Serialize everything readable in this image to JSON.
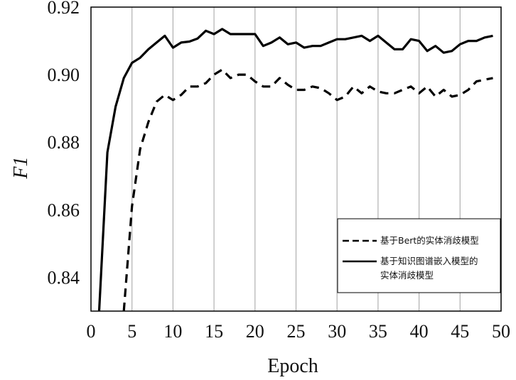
{
  "chart_data": {
    "type": "line",
    "xlabel": "Epoch",
    "ylabel": "F1",
    "xlim": [
      0,
      50
    ],
    "ylim": [
      0.83,
      0.92
    ],
    "xticks": [
      "0",
      "5",
      "10",
      "15",
      "20",
      "25",
      "30",
      "35",
      "40",
      "45",
      "50"
    ],
    "yticks": [
      "0.84",
      "0.86",
      "0.88",
      "0.90",
      "0.92"
    ],
    "grid": "vertical",
    "legend_position": "bottom-right",
    "series": [
      {
        "name": "基于Bert的实体消歧模型",
        "style": "dashed",
        "color": "#000000",
        "x": [
          4,
          5,
          6,
          7,
          8,
          9,
          10,
          11,
          12,
          13,
          14,
          15,
          16,
          17,
          18,
          19,
          20,
          21,
          22,
          23,
          24,
          25,
          26,
          27,
          28,
          29,
          30,
          31,
          32,
          33,
          34,
          35,
          36,
          37,
          38,
          39,
          40,
          41,
          42,
          43,
          44,
          45,
          46,
          47,
          48,
          49
        ],
        "y": [
          0.83,
          0.861,
          0.878,
          0.886,
          0.892,
          0.894,
          0.8925,
          0.894,
          0.8965,
          0.8965,
          0.8975,
          0.9,
          0.9015,
          0.899,
          0.9,
          0.9,
          0.898,
          0.8965,
          0.8965,
          0.899,
          0.897,
          0.8955,
          0.8955,
          0.8965,
          0.896,
          0.8945,
          0.8925,
          0.8935,
          0.8965,
          0.8945,
          0.8965,
          0.895,
          0.8945,
          0.8945,
          0.8955,
          0.8965,
          0.8945,
          0.8965,
          0.8935,
          0.8955,
          0.8935,
          0.894,
          0.8955,
          0.898,
          0.8985,
          0.899
        ]
      },
      {
        "name": "基于知识图谱嵌入模型的实体消歧模型",
        "style": "solid",
        "color": "#000000",
        "x": [
          1,
          2,
          3,
          4,
          5,
          6,
          7,
          8,
          9,
          10,
          11,
          12,
          13,
          14,
          15,
          16,
          17,
          18,
          19,
          20,
          21,
          22,
          23,
          24,
          25,
          26,
          27,
          28,
          29,
          30,
          31,
          32,
          33,
          34,
          35,
          36,
          37,
          38,
          39,
          40,
          41,
          42,
          43,
          44,
          45,
          46,
          47,
          48,
          49
        ],
        "y": [
          0.83,
          0.877,
          0.8905,
          0.899,
          0.9035,
          0.905,
          0.9075,
          0.9095,
          0.9115,
          0.908,
          0.9095,
          0.9098,
          0.9107,
          0.913,
          0.912,
          0.9135,
          0.912,
          0.912,
          0.912,
          0.912,
          0.9085,
          0.9095,
          0.911,
          0.909,
          0.9095,
          0.908,
          0.9085,
          0.9085,
          0.9095,
          0.9105,
          0.9105,
          0.911,
          0.9115,
          0.91,
          0.9115,
          0.9095,
          0.9075,
          0.9075,
          0.9105,
          0.91,
          0.907,
          0.9085,
          0.9065,
          0.907,
          0.909,
          0.91,
          0.91,
          0.911,
          0.9115
        ]
      }
    ],
    "legend": [
      {
        "label": "基于Bert的实体消歧模型",
        "style": "dashed"
      },
      {
        "label": "基于知识图谱嵌入模型的",
        "label_line2": "实体消歧模型",
        "style": "solid"
      }
    ]
  }
}
